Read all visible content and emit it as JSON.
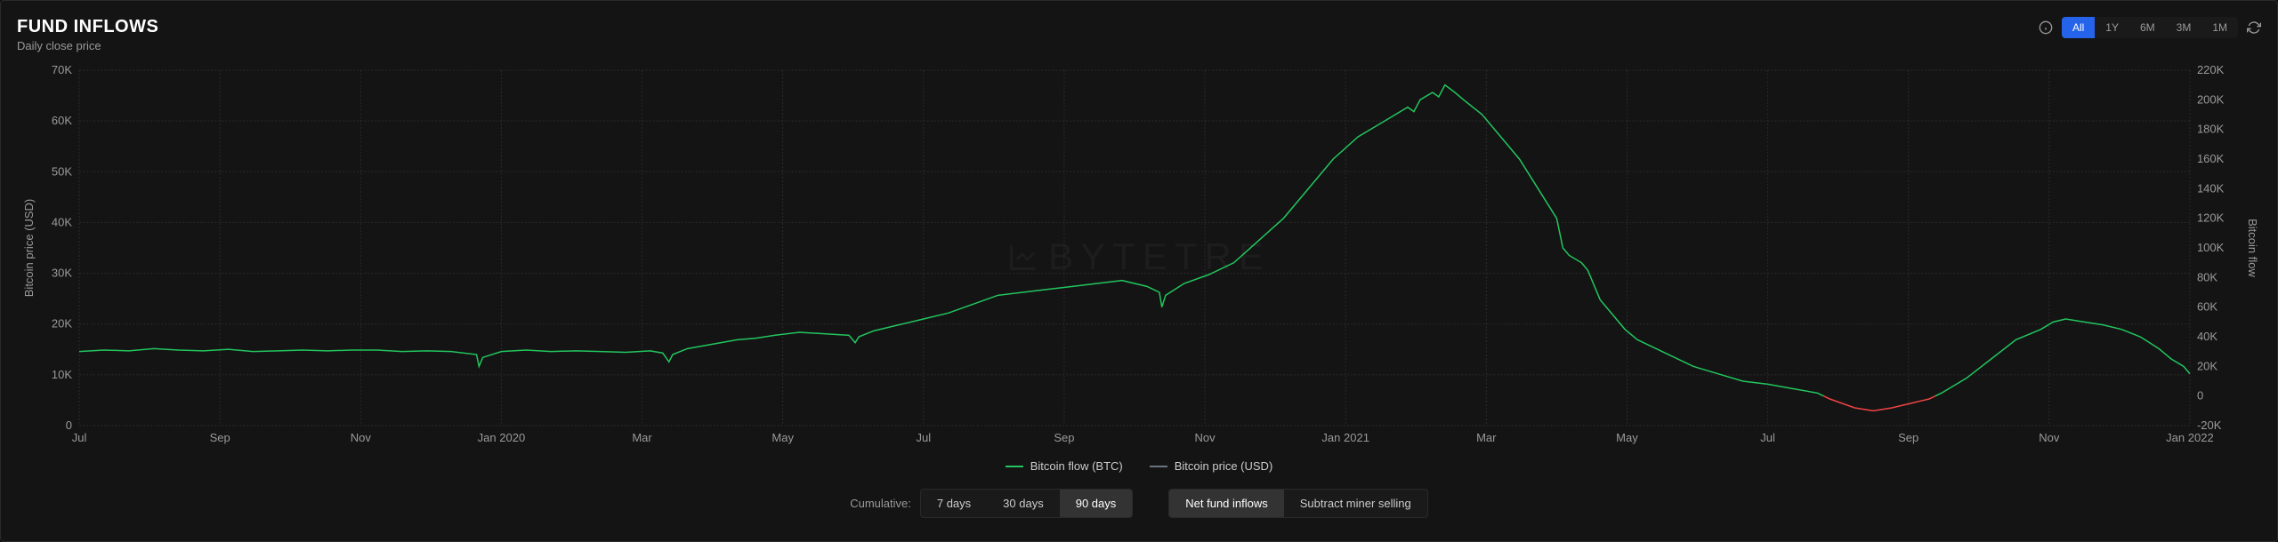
{
  "header": {
    "title": "FUND INFLOWS",
    "subtitle": "Daily close price"
  },
  "range": {
    "options": [
      "All",
      "1Y",
      "6M",
      "3M",
      "1M"
    ],
    "active_index": 0
  },
  "watermark": "BYTETRE",
  "chart": {
    "type": "line",
    "background_color": "#141414",
    "grid_color": "#2a2a2a",
    "left_axis": {
      "label": "Bitcoin price (USD)",
      "ticks": [
        "0",
        "10K",
        "20K",
        "30K",
        "40K",
        "50K",
        "60K",
        "70K"
      ],
      "ylim": [
        0,
        70000
      ],
      "fontsize": 13
    },
    "right_axis": {
      "label": "Bitcoin flow",
      "ticks": [
        "-20K",
        "0",
        "20K",
        "40K",
        "60K",
        "80K",
        "100K",
        "120K",
        "140K",
        "160K",
        "180K",
        "200K",
        "220K"
      ],
      "ylim": [
        -20000,
        220000
      ],
      "fontsize": 13
    },
    "x_axis": {
      "ticks": [
        "Jul",
        "Sep",
        "Nov",
        "Jan 2020",
        "Mar",
        "May",
        "Jul",
        "Sep",
        "Nov",
        "Jan 2021",
        "Mar",
        "May",
        "Jul",
        "Sep",
        "Nov",
        "Jan 2022"
      ],
      "fontsize": 13
    },
    "series": [
      {
        "name": "Bitcoin flow (BTC)",
        "color_positive": "#22c55e",
        "color_negative": "#ef4444",
        "line_width": 1.5,
        "data": [
          [
            0,
            30000
          ],
          [
            20,
            31000
          ],
          [
            40,
            30500
          ],
          [
            60,
            32000
          ],
          [
            80,
            31000
          ],
          [
            100,
            30500
          ],
          [
            120,
            31500
          ],
          [
            140,
            30000
          ],
          [
            160,
            30500
          ],
          [
            180,
            31000
          ],
          [
            200,
            30500
          ],
          [
            220,
            31000
          ],
          [
            240,
            31000
          ],
          [
            260,
            30000
          ],
          [
            280,
            30500
          ],
          [
            300,
            30000
          ],
          [
            320,
            28000
          ],
          [
            322,
            20000
          ],
          [
            325,
            26000
          ],
          [
            340,
            30000
          ],
          [
            360,
            31000
          ],
          [
            380,
            30000
          ],
          [
            400,
            30500
          ],
          [
            420,
            30000
          ],
          [
            440,
            29500
          ],
          [
            460,
            30500
          ],
          [
            470,
            29000
          ],
          [
            475,
            23000
          ],
          [
            478,
            28000
          ],
          [
            490,
            32000
          ],
          [
            510,
            35000
          ],
          [
            530,
            38000
          ],
          [
            545,
            39000
          ],
          [
            560,
            41000
          ],
          [
            580,
            43000
          ],
          [
            600,
            42000
          ],
          [
            620,
            41000
          ],
          [
            625,
            36000
          ],
          [
            628,
            40000
          ],
          [
            640,
            44000
          ],
          [
            660,
            48000
          ],
          [
            680,
            52000
          ],
          [
            700,
            56000
          ],
          [
            720,
            62000
          ],
          [
            740,
            68000
          ],
          [
            760,
            70000
          ],
          [
            780,
            72000
          ],
          [
            800,
            74000
          ],
          [
            820,
            76000
          ],
          [
            840,
            78000
          ],
          [
            860,
            74000
          ],
          [
            870,
            70000
          ],
          [
            872,
            60000
          ],
          [
            875,
            68000
          ],
          [
            890,
            76000
          ],
          [
            910,
            82000
          ],
          [
            930,
            90000
          ],
          [
            950,
            105000
          ],
          [
            970,
            120000
          ],
          [
            990,
            140000
          ],
          [
            1010,
            160000
          ],
          [
            1030,
            175000
          ],
          [
            1050,
            185000
          ],
          [
            1070,
            195000
          ],
          [
            1075,
            192000
          ],
          [
            1080,
            200000
          ],
          [
            1090,
            205000
          ],
          [
            1095,
            202000
          ],
          [
            1100,
            210000
          ],
          [
            1108,
            205000
          ],
          [
            1115,
            200000
          ],
          [
            1130,
            190000
          ],
          [
            1145,
            175000
          ],
          [
            1160,
            160000
          ],
          [
            1175,
            140000
          ],
          [
            1190,
            120000
          ],
          [
            1195,
            100000
          ],
          [
            1200,
            95000
          ],
          [
            1210,
            90000
          ],
          [
            1215,
            85000
          ],
          [
            1225,
            65000
          ],
          [
            1235,
            55000
          ],
          [
            1245,
            45000
          ],
          [
            1255,
            38000
          ],
          [
            1270,
            32000
          ],
          [
            1285,
            26000
          ],
          [
            1300,
            20000
          ],
          [
            1320,
            15000
          ],
          [
            1340,
            10000
          ],
          [
            1360,
            8000
          ],
          [
            1380,
            5000
          ],
          [
            1400,
            2000
          ],
          [
            1410,
            -2000
          ],
          [
            1420,
            -5000
          ],
          [
            1430,
            -8000
          ],
          [
            1445,
            -10000
          ],
          [
            1460,
            -8000
          ],
          [
            1475,
            -5000
          ],
          [
            1490,
            -2000
          ],
          [
            1500,
            2000
          ],
          [
            1520,
            12000
          ],
          [
            1540,
            25000
          ],
          [
            1560,
            38000
          ],
          [
            1580,
            45000
          ],
          [
            1590,
            50000
          ],
          [
            1600,
            52000
          ],
          [
            1615,
            50000
          ],
          [
            1630,
            48000
          ],
          [
            1645,
            45000
          ],
          [
            1660,
            40000
          ],
          [
            1675,
            32000
          ],
          [
            1685,
            25000
          ],
          [
            1695,
            20000
          ],
          [
            1700,
            15000
          ]
        ]
      },
      {
        "name": "Bitcoin price (USD)",
        "color": "#6b7280",
        "line_width": 1,
        "visible": false
      }
    ]
  },
  "legend": {
    "items": [
      {
        "label": "Bitcoin flow (BTC)",
        "color": "#22c55e"
      },
      {
        "label": "Bitcoin price (USD)",
        "color": "#6b7280"
      }
    ]
  },
  "cumulative": {
    "label": "Cumulative:",
    "options": [
      "7 days",
      "30 days",
      "90 days"
    ],
    "active_index": 2
  },
  "mode": {
    "options": [
      "Net fund inflows",
      "Subtract miner selling"
    ],
    "active_index": 0
  }
}
